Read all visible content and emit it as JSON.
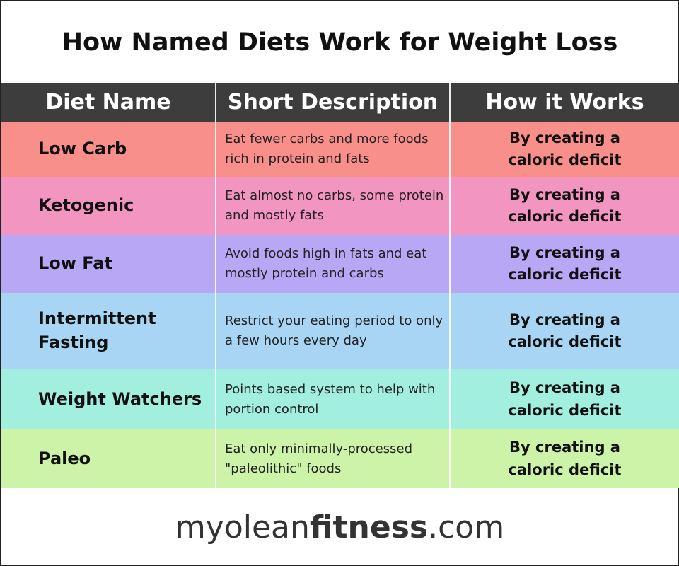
{
  "title": "How Named Diets Work for Weight Loss",
  "columns": [
    "Diet Name",
    "Short Description",
    "How it Works"
  ],
  "rows": [
    {
      "name": "Low Carb",
      "description": "Eat fewer carbs and more foods rich in protein and fats",
      "how": "By creating a caloric deficit",
      "color": "#f98f8b"
    },
    {
      "name": "Ketogenic",
      "description": "Eat almost no carbs, some protein and mostly fats",
      "how": "By creating a caloric deficit",
      "color": "#f295c1"
    },
    {
      "name": "Low Fat",
      "description": "Avoid foods high in fats and eat mostly protein and carbs",
      "how": "By creating a caloric deficit",
      "color": "#b8a7f5"
    },
    {
      "name": "Intermittent Fasting",
      "description": "Restrict your eating period to only a few hours every day",
      "how": "By creating a caloric deficit",
      "color": "#a7d5f3"
    },
    {
      "name": "Weight Watchers",
      "description": "Points based system to help with portion control",
      "how": "By creating a caloric deficit",
      "color": "#a3efdf"
    },
    {
      "name": "Paleo",
      "description": "Eat only minimally-processed \"paleolithic\" foods",
      "how": "By creating a caloric deficit",
      "color": "#cdf3a8"
    }
  ],
  "footer": {
    "brand_light": "myolean",
    "brand_bold": "fitness",
    "brand_suffix": ".com"
  }
}
